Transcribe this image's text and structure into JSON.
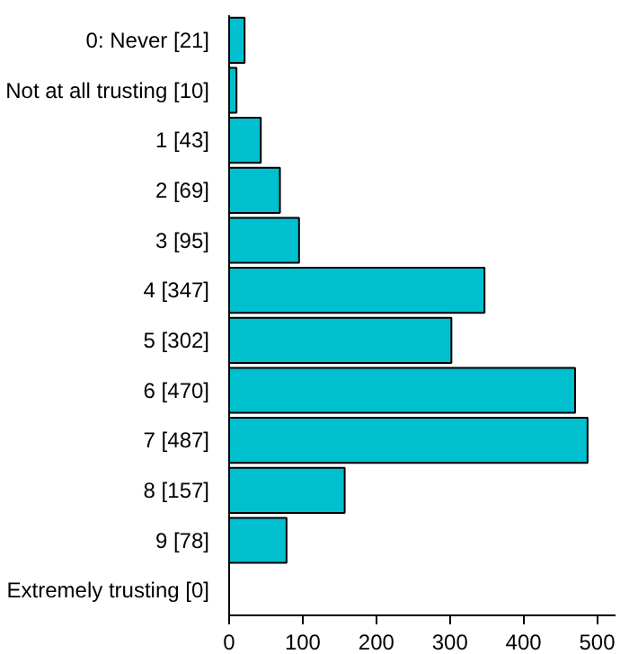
{
  "chart_data": {
    "type": "bar",
    "orientation": "horizontal",
    "categories": [
      "0: Never [21]",
      "Not at all trusting [10]",
      "1 [43]",
      "2 [69]",
      "3 [95]",
      "4 [347]",
      "5 [302]",
      "6 [470]",
      "7 [487]",
      "8 [157]",
      "9 [78]",
      "Extremely trusting [0]"
    ],
    "values": [
      21,
      10,
      43,
      69,
      95,
      347,
      302,
      470,
      487,
      157,
      78,
      0
    ],
    "color": "#00c0d0",
    "xlim": [
      0,
      525
    ],
    "xticks": [
      0,
      100,
      200,
      300,
      400,
      500
    ],
    "grid": false
  }
}
